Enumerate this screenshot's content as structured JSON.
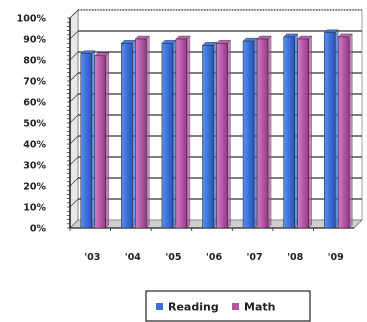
{
  "chart_data": {
    "type": "bar",
    "title": "",
    "xlabel": "",
    "ylabel": "",
    "categories": [
      "'03",
      "'04",
      "'05",
      "'06",
      "'07",
      "'08",
      "'09"
    ],
    "series": [
      {
        "name": "Reading",
        "color": "#3a6fd8",
        "values": [
          83,
          88,
          88,
          87,
          89,
          91,
          93
        ]
      },
      {
        "name": "Math",
        "color": "#b455a6",
        "values": [
          82,
          90,
          90,
          88,
          90,
          90,
          91
        ]
      }
    ],
    "y_ticks": [
      "0%",
      "10%",
      "20%",
      "30%",
      "40%",
      "50%",
      "60%",
      "70%",
      "80%",
      "90%",
      "100%"
    ],
    "ylim": [
      0,
      100
    ],
    "grid": true,
    "legend_position": "bottom"
  }
}
